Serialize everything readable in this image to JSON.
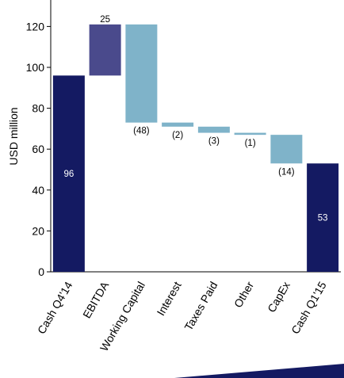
{
  "chart_data": {
    "type": "bar",
    "subtype": "waterfall",
    "ylabel": "USD million",
    "xlabel": "",
    "ylim": [
      0,
      130
    ],
    "yticks": [
      0,
      20,
      40,
      60,
      80,
      100,
      120
    ],
    "grid": false,
    "legend": "none",
    "categories": [
      "Cash Q4'14",
      "EBITDA",
      "Working Capital",
      "Interest",
      "Taxes Paid",
      "Other",
      "CapEx",
      "Cash Q1'15"
    ],
    "bars": [
      {
        "category": "Cash Q4'14",
        "kind": "total",
        "start": 0,
        "end": 96,
        "label": "96"
      },
      {
        "category": "EBITDA",
        "kind": "increase",
        "start": 96,
        "end": 121,
        "label": "25"
      },
      {
        "category": "Working Capital",
        "kind": "decrease",
        "start": 121,
        "end": 73,
        "label": "(48)"
      },
      {
        "category": "Interest",
        "kind": "decrease",
        "start": 73,
        "end": 71,
        "label": "(2)"
      },
      {
        "category": "Taxes Paid",
        "kind": "decrease",
        "start": 71,
        "end": 68,
        "label": "(3)"
      },
      {
        "category": "Other",
        "kind": "decrease",
        "start": 68,
        "end": 67,
        "label": "(1)"
      },
      {
        "category": "CapEx",
        "kind": "decrease",
        "start": 67,
        "end": 53,
        "label": "(14)"
      },
      {
        "category": "Cash Q1'15",
        "kind": "total",
        "start": 0,
        "end": 53,
        "label": "53"
      }
    ],
    "colors": {
      "total": "#141a62",
      "increase": "#4a4a8c",
      "decrease": "#7fb3c9",
      "accent_band": "#141a62"
    }
  }
}
